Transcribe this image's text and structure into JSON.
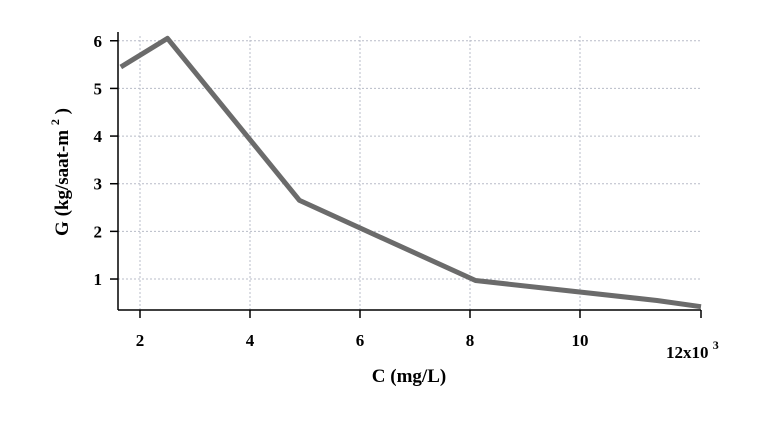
{
  "chart_data": {
    "type": "line",
    "xlabel": "C (mg/L)",
    "ylabel": "G (kg/saat-m",
    "ylabel_superscript": "2",
    "ylabel_suffix": ")",
    "x_multiplier_label": "12x10",
    "x_multiplier_exponent": "3",
    "xlim": [
      1600,
      12200
    ],
    "ylim": [
      0.35,
      6.1
    ],
    "x_ticks": [
      2000,
      4000,
      6000,
      8000,
      10000
    ],
    "x_tick_labels": [
      "2",
      "4",
      "6",
      "8",
      "10"
    ],
    "y_ticks": [
      1,
      2,
      3,
      4,
      5,
      6
    ],
    "y_tick_labels": [
      "1",
      "2",
      "3",
      "4",
      "5",
      "6"
    ],
    "grid": true,
    "series": [
      {
        "color": "#6b6b6b",
        "x": [
          1650,
          2500,
          4900,
          8100,
          11400,
          12200
        ],
        "y": [
          5.45,
          6.05,
          2.65,
          0.97,
          0.55,
          0.42
        ]
      }
    ]
  }
}
